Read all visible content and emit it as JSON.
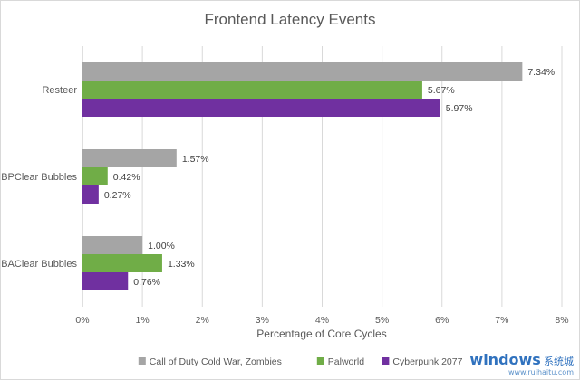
{
  "chart_data": {
    "type": "bar",
    "orientation": "horizontal",
    "title": "Frontend Latency Events",
    "xlabel": "Percentage of Core Cycles",
    "ylabel": "",
    "xlim": [
      0,
      8
    ],
    "x_ticks": [
      "0%",
      "1%",
      "2%",
      "3%",
      "4%",
      "5%",
      "6%",
      "7%",
      "8%"
    ],
    "grid": true,
    "legend_position": "bottom",
    "categories": [
      "Resteer",
      "BPClear Bubbles",
      "BAClear Bubbles"
    ],
    "series": [
      {
        "name": "Call of Duty Cold War, Zombies",
        "color": "#a5a5a5",
        "values": [
          7.34,
          1.57,
          1.0
        ],
        "labels": [
          "7.34%",
          "1.57%",
          "1.00%"
        ]
      },
      {
        "name": "Palworld",
        "color": "#70ad47",
        "values": [
          5.67,
          0.42,
          1.33
        ],
        "labels": [
          "5.67%",
          "0.42%",
          "1.33%"
        ]
      },
      {
        "name": "Cyberpunk 2077",
        "color": "#7030a0",
        "values": [
          5.97,
          0.27,
          0.76
        ],
        "labels": [
          "5.97%",
          "0.27%",
          "0.76%"
        ]
      }
    ]
  },
  "watermark": {
    "main": "windows",
    "sub": "系统城",
    "url": "www.ruihaitu.com"
  }
}
